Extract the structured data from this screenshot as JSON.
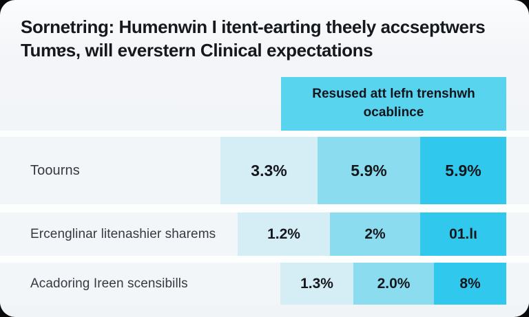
{
  "title": {
    "line1": "Sornetring: Humenwin I itent-earting theely accseptwers",
    "line2": "Tumɐs, will everstern Clinical expectations"
  },
  "chart_data": {
    "type": "table",
    "title": "Sornetring: Humenwin I itent-earting theely accseptwers Tumɐs, will everstern Clinical expectations",
    "column_header": "Resused att lefn trenshwh ocablince",
    "rows": [
      {
        "label": "Toourns",
        "values": [
          "3.3%",
          "5.9%",
          "5.9%"
        ]
      },
      {
        "label": "Ercenglinar litenashier sharems",
        "values": [
          "1.2%",
          "2%",
          "01.lι"
        ]
      },
      {
        "label": "Acadoring Ireen scensibills",
        "values": [
          "1.3%",
          "2.0%",
          "8%"
        ]
      }
    ],
    "layout_hints": {
      "cells_right_aligned": true,
      "legend_position": "none",
      "grid": false
    },
    "colors": {
      "header_cell": "#59d4ef",
      "cell_light": "#d5edf5",
      "cell_medium": "#8cdcef",
      "cell_dark": "#31c8ed",
      "card_background": "#f1f4f7",
      "row_background": "#f3f6f9",
      "text": "#15181d"
    }
  }
}
